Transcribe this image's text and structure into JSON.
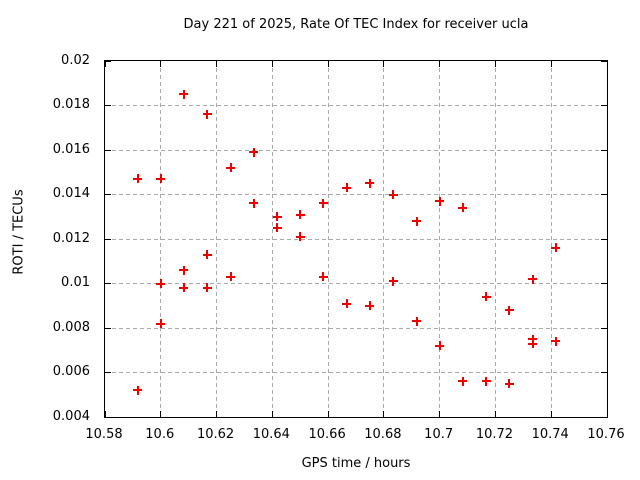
{
  "chart_data": {
    "type": "scatter",
    "title": "Day 221 of 2025, Rate Of TEC Index for receiver ucla",
    "xlabel": "GPS time / hours",
    "ylabel": "ROTI / TECUs",
    "xlim": [
      10.58,
      10.76
    ],
    "ylim": [
      0.004,
      0.02
    ],
    "grid": true,
    "legend_position": "none",
    "xticks": {
      "values": [
        10.58,
        10.6,
        10.62,
        10.64,
        10.66,
        10.68,
        10.7,
        10.72,
        10.74,
        10.76
      ],
      "labels": [
        "10.58",
        "10.6",
        "10.62",
        "10.64",
        "10.66",
        "10.68",
        "10.7",
        "10.72",
        "10.74",
        "10.76"
      ]
    },
    "yticks": {
      "values": [
        0.004,
        0.006,
        0.008,
        0.01,
        0.012,
        0.014,
        0.016,
        0.018,
        0.02
      ],
      "labels": [
        "0.004",
        "0.006",
        "0.008",
        "0.01",
        "0.012",
        "0.014",
        "0.016",
        "0.018",
        "0.02"
      ]
    },
    "colors": {
      "marker": "#ee0000",
      "grid": "#aaaaaa",
      "axis": "#000000",
      "background": "#ffffff"
    },
    "marker_shape": "plus",
    "series": [
      {
        "name": "ROTI",
        "points": [
          [
            10.5917,
            0.0147
          ],
          [
            10.5917,
            0.0052
          ],
          [
            10.6,
            0.0147
          ],
          [
            10.6,
            0.01
          ],
          [
            10.6,
            0.0082
          ],
          [
            10.6083,
            0.0185
          ],
          [
            10.6083,
            0.0106
          ],
          [
            10.6083,
            0.0098
          ],
          [
            10.6167,
            0.0176
          ],
          [
            10.6167,
            0.0113
          ],
          [
            10.6167,
            0.0098
          ],
          [
            10.625,
            0.0152
          ],
          [
            10.625,
            0.0103
          ],
          [
            10.6333,
            0.0159
          ],
          [
            10.6333,
            0.0136
          ],
          [
            10.6417,
            0.013
          ],
          [
            10.6417,
            0.0125
          ],
          [
            10.65,
            0.0131
          ],
          [
            10.65,
            0.0121
          ],
          [
            10.6583,
            0.0136
          ],
          [
            10.6583,
            0.0103
          ],
          [
            10.6667,
            0.0143
          ],
          [
            10.6667,
            0.0091
          ],
          [
            10.675,
            0.0145
          ],
          [
            10.675,
            0.009
          ],
          [
            10.6833,
            0.014
          ],
          [
            10.6833,
            0.0101
          ],
          [
            10.6917,
            0.0128
          ],
          [
            10.6917,
            0.0083
          ],
          [
            10.7,
            0.0137
          ],
          [
            10.7,
            0.0072
          ],
          [
            10.7083,
            0.0134
          ],
          [
            10.7083,
            0.0056
          ],
          [
            10.7167,
            0.0094
          ],
          [
            10.7167,
            0.0056
          ],
          [
            10.725,
            0.0088
          ],
          [
            10.725,
            0.0055
          ],
          [
            10.7333,
            0.0102
          ],
          [
            10.7333,
            0.0075
          ],
          [
            10.7333,
            0.0073
          ],
          [
            10.7417,
            0.0116
          ],
          [
            10.7417,
            0.0074
          ]
        ]
      }
    ]
  }
}
